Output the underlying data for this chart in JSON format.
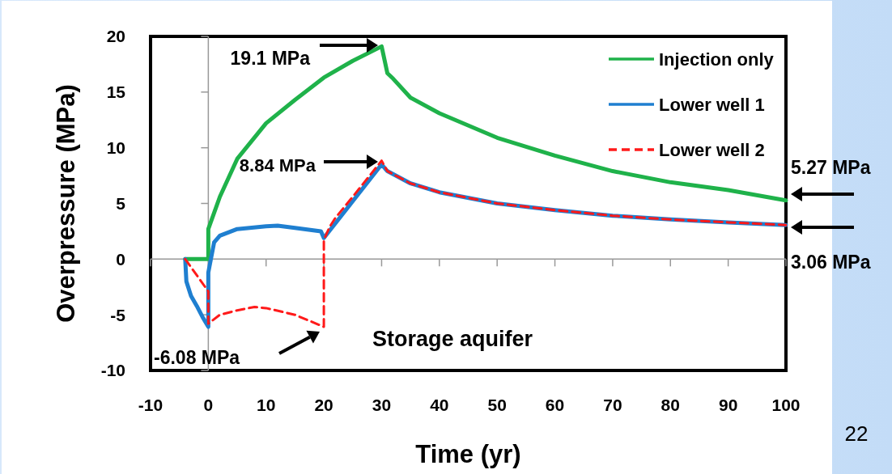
{
  "chart_data": {
    "type": "line",
    "xlabel": "Time (yr)",
    "ylabel": "Overpressure (MPa)",
    "xlim": [
      -10,
      100
    ],
    "xticks": [
      -10,
      0,
      10,
      20,
      30,
      40,
      50,
      60,
      70,
      80,
      90,
      100
    ],
    "ylim": [
      -10,
      20
    ],
    "yticks": [
      -10,
      -5,
      0,
      5,
      10,
      15,
      20
    ],
    "legend": "top right",
    "marker": "none",
    "series": [
      {
        "name": "Injection only",
        "color": "#1fb24a",
        "line_style": "solid",
        "x": [
          -4,
          0,
          0,
          2,
          5,
          10,
          15,
          20,
          25,
          30,
          31,
          32,
          35,
          40,
          50,
          60,
          70,
          80,
          90,
          100
        ],
        "values": [
          0,
          0,
          2.7,
          5.6,
          9.0,
          12.2,
          14.3,
          16.3,
          17.8,
          19.1,
          16.7,
          16.2,
          14.5,
          13.1,
          10.9,
          9.3,
          7.9,
          6.9,
          6.2,
          5.27
        ]
      },
      {
        "name": "Lower well 1",
        "color": "#1f7fd0",
        "line_style": "solid",
        "x": [
          -4,
          -3.8,
          -3,
          -2,
          -1,
          0,
          0,
          1,
          2,
          5,
          10,
          12,
          15,
          19.5,
          20,
          25,
          30,
          31,
          35,
          40,
          50,
          60,
          70,
          80,
          90,
          100
        ],
        "values": [
          0,
          -2.0,
          -3.3,
          -4.2,
          -5.2,
          -6.08,
          -1.2,
          1.5,
          2.1,
          2.7,
          2.95,
          3.0,
          2.8,
          2.5,
          1.9,
          5.2,
          8.5,
          7.9,
          6.8,
          6.0,
          5.0,
          4.4,
          3.9,
          3.56,
          3.3,
          3.06
        ]
      },
      {
        "name": "Lower well 2",
        "color": "#ff1a1a",
        "line_style": "dashed",
        "x": [
          -4,
          0,
          0,
          2,
          5,
          8,
          10,
          15,
          20,
          20,
          21,
          22,
          25,
          30,
          31,
          35,
          40,
          50,
          60,
          70,
          80,
          90,
          100
        ],
        "values": [
          0,
          -2.9,
          -5.8,
          -5.0,
          -4.6,
          -4.3,
          -4.4,
          -5.0,
          -6.08,
          1.7,
          2.9,
          3.7,
          5.6,
          8.84,
          7.9,
          6.8,
          6.0,
          5.0,
          4.4,
          3.9,
          3.56,
          3.3,
          3.06
        ]
      }
    ],
    "annotations": [
      "19.1 MPa",
      "8.84 MPa",
      "-6.08 MPa",
      "5.27 MPa",
      "3.06 MPa",
      "Storage aquifer",
      "22"
    ]
  }
}
